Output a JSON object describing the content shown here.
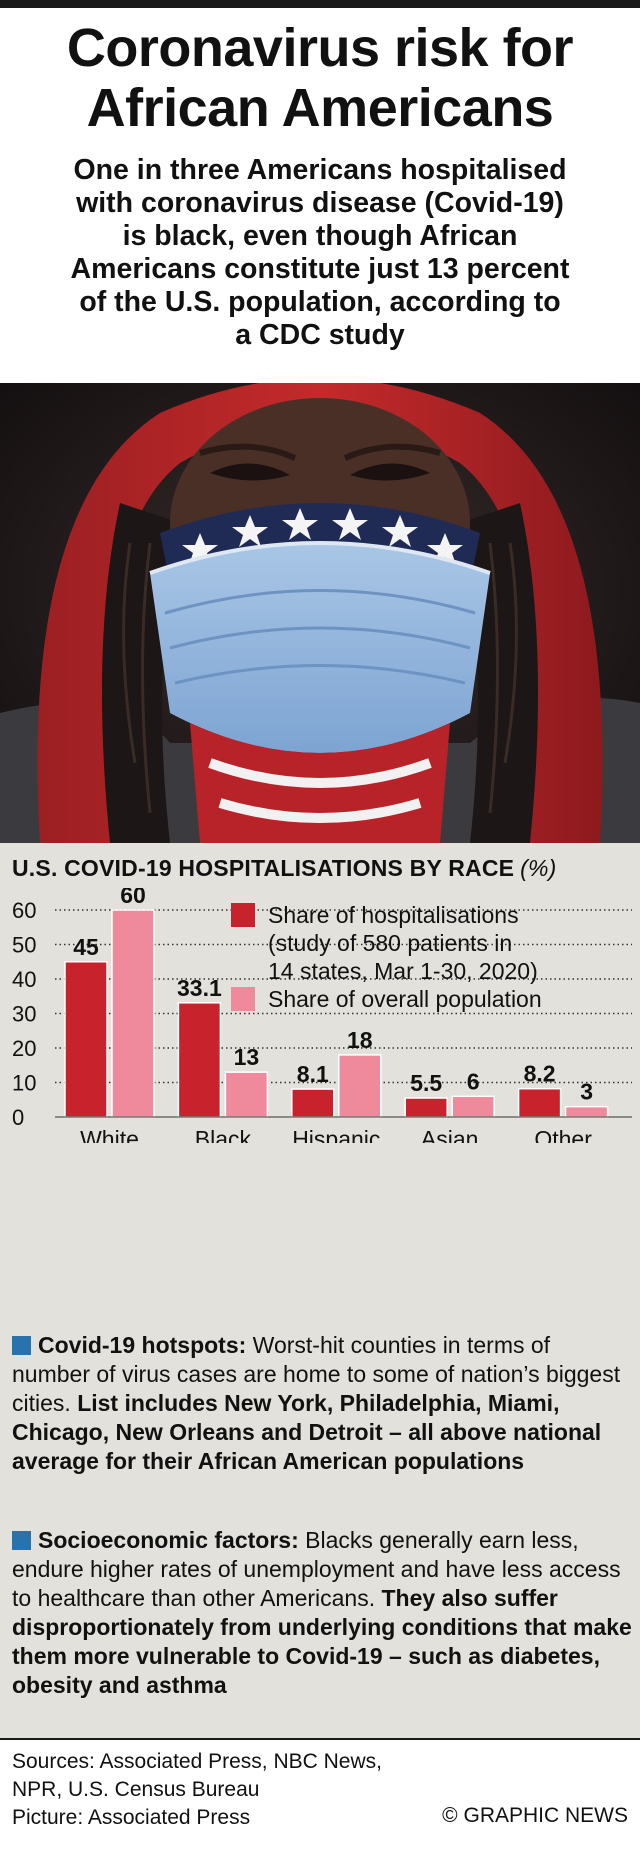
{
  "header": {
    "title_line1": "Coronavirus risk for",
    "title_line2": "African Americans",
    "subtitle_lines": [
      "One in three Americans hospitalised",
      "with coronavirus disease (Covid-19)",
      "is black, even though African",
      "Americans constitute just 13 percent",
      "of the U.S. population, according to",
      "a CDC study"
    ]
  },
  "colors": {
    "hospitalisations": "#c8232c",
    "population": "#ee8a9c",
    "panel_bg": "#e3e1db",
    "accent_square": "#2773ae"
  },
  "chart_data": {
    "type": "bar",
    "title": "U.S. COVID-19 HOSPITALISATIONS BY RACE",
    "unit": "(%)",
    "categories": [
      "White",
      "Black",
      "Hispanic",
      "Asian",
      "Other"
    ],
    "series": [
      {
        "name": "Share of hospitalisations",
        "values": [
          45,
          33.1,
          8.1,
          5.5,
          8.2
        ]
      },
      {
        "name": "Share of overall population",
        "values": [
          60,
          13,
          18,
          6,
          3
        ]
      }
    ],
    "value_labels": [
      [
        "45",
        "33.1",
        "8.1",
        "5.5",
        "8.2"
      ],
      [
        "60",
        "13",
        "18",
        "6",
        "3"
      ]
    ],
    "legend": {
      "hospitalisations_lines": [
        "Share of hospitalisations",
        "(study of 580 patients in",
        "14 states, Mar 1-30, 2020)"
      ],
      "population_lines": [
        "Share of overall population"
      ],
      "placement": "top-right"
    },
    "yticks": [
      0,
      10,
      20,
      30,
      40,
      50,
      60
    ],
    "ytick_labels": [
      "0",
      "10",
      "20",
      "30",
      "40",
      "50",
      "60"
    ],
    "ylim": [
      0,
      60
    ],
    "grid": "dotted horizontal"
  },
  "notes": [
    {
      "heading": "Covid-19 hotspots:",
      "text": " Worst-hit counties in terms of number of virus cases are home to some of nation’s biggest cities. ",
      "bold_text": "List includes New York, Philadelphia, Miami, Chicago, New Orleans and Detroit – all above national average for their African American populations"
    },
    {
      "heading": "Socioeconomic factors:",
      "text": " Blacks generally earn less, endure higher rates of unemployment and have less access to healthcare than other Americans. ",
      "bold_text": "They also suffer disproportionately from underlying conditions that make them more vulnerable to Covid-19 – such as diabetes, obesity and asthma"
    }
  ],
  "footer": {
    "sources_line1": "Sources: Associated Press, NBC News,",
    "sources_line2": "NPR, U.S. Census Bureau",
    "picture_credit": "Picture: Associated Press",
    "copyright": "© GRAPHIC NEWS"
  }
}
